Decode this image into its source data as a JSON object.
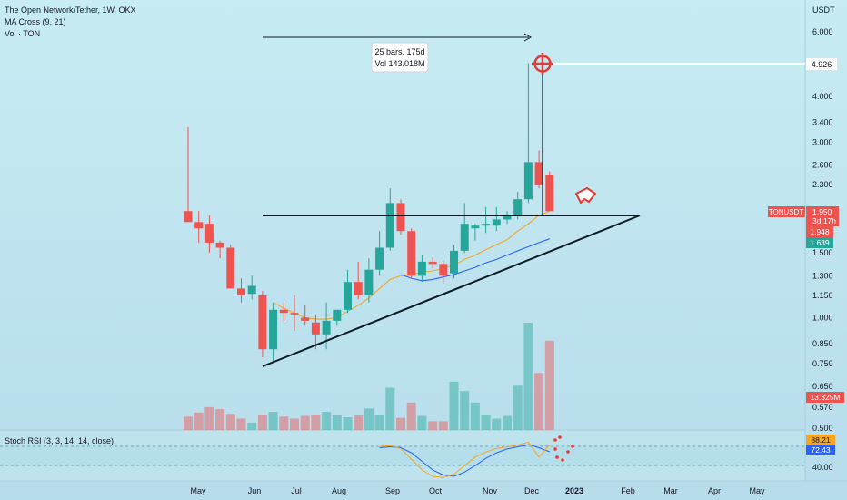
{
  "header": {
    "symbol_line": "The Open Network/Tether, 1W, OKX",
    "indicator_ma": "MA Cross (9, 21)",
    "indicator_vol": "Vol · TON"
  },
  "price_axis": {
    "unit": "USDT",
    "ticks": [
      "6.000",
      "4.000",
      "3.400",
      "3.000",
      "2.600",
      "2.300",
      "1.500",
      "1.300",
      "1.150",
      "1.000",
      "0.850",
      "0.750",
      "0.650",
      "0.570",
      "0.500"
    ]
  },
  "price_labels": {
    "target": "4.926",
    "symbol": "TONUSDT",
    "last": "1.950",
    "countdown": "3d 17h",
    "ma_fast": "1.948",
    "ma_slow": "1.639",
    "volume": "13.325M"
  },
  "measure": {
    "bars": "25 bars, 175d",
    "vol": "Vol 143.018M"
  },
  "rsi": {
    "label": "Stoch RSI (3, 3, 14, 14, close)",
    "k": "88.21",
    "d": "72.43",
    "tick": "40.00"
  },
  "time_axis": [
    "May",
    "Jun",
    "Jul",
    "Aug",
    "Sep",
    "Oct",
    "Nov",
    "Dec",
    "2023",
    "Feb",
    "Mar",
    "Apr",
    "May"
  ],
  "colors": {
    "up": "#26a69a",
    "down": "#ef5350",
    "ma_fast": "#f5a623",
    "ma_slow": "#2962ff",
    "bg": "#bfe3ee",
    "target": "#e53935"
  },
  "chart_data": {
    "type": "candlestick",
    "interval": "1W",
    "log_scale": true,
    "ylim": [
      0.49,
      7.2
    ],
    "candles": [
      {
        "o": 1.95,
        "h": 3.3,
        "l": 1.82,
        "c": 1.82
      },
      {
        "o": 1.82,
        "h": 1.95,
        "l": 1.6,
        "c": 1.75
      },
      {
        "o": 1.8,
        "h": 1.9,
        "l": 1.5,
        "c": 1.6
      },
      {
        "o": 1.6,
        "h": 1.62,
        "l": 1.45,
        "c": 1.55
      },
      {
        "o": 1.55,
        "h": 1.58,
        "l": 1.25,
        "c": 1.2
      },
      {
        "o": 1.2,
        "h": 1.28,
        "l": 1.1,
        "c": 1.15
      },
      {
        "o": 1.16,
        "h": 1.3,
        "l": 1.12,
        "c": 1.22
      },
      {
        "o": 1.15,
        "h": 1.18,
        "l": 0.78,
        "c": 0.82
      },
      {
        "o": 0.82,
        "h": 1.1,
        "l": 0.76,
        "c": 1.05
      },
      {
        "o": 1.05,
        "h": 1.1,
        "l": 0.98,
        "c": 1.03
      },
      {
        "o": 1.03,
        "h": 1.15,
        "l": 0.92,
        "c": 1.02
      },
      {
        "o": 1.0,
        "h": 1.08,
        "l": 0.95,
        "c": 0.98
      },
      {
        "o": 0.97,
        "h": 1.02,
        "l": 0.82,
        "c": 0.9
      },
      {
        "o": 0.9,
        "h": 1.1,
        "l": 0.82,
        "c": 0.98
      },
      {
        "o": 0.98,
        "h": 1.05,
        "l": 0.95,
        "c": 1.05
      },
      {
        "o": 1.05,
        "h": 1.35,
        "l": 1.03,
        "c": 1.25
      },
      {
        "o": 1.25,
        "h": 1.42,
        "l": 1.12,
        "c": 1.15
      },
      {
        "o": 1.15,
        "h": 1.45,
        "l": 1.1,
        "c": 1.35
      },
      {
        "o": 1.35,
        "h": 1.72,
        "l": 1.3,
        "c": 1.55
      },
      {
        "o": 1.55,
        "h": 2.25,
        "l": 1.52,
        "c": 2.05
      },
      {
        "o": 2.05,
        "h": 2.1,
        "l": 1.68,
        "c": 1.72
      },
      {
        "o": 1.72,
        "h": 1.75,
        "l": 1.28,
        "c": 1.3
      },
      {
        "o": 1.3,
        "h": 1.48,
        "l": 1.25,
        "c": 1.42
      },
      {
        "o": 1.42,
        "h": 1.46,
        "l": 1.36,
        "c": 1.4
      },
      {
        "o": 1.4,
        "h": 1.43,
        "l": 1.24,
        "c": 1.3
      },
      {
        "o": 1.32,
        "h": 1.58,
        "l": 1.28,
        "c": 1.52
      },
      {
        "o": 1.52,
        "h": 2.05,
        "l": 1.5,
        "c": 1.8
      },
      {
        "o": 1.75,
        "h": 1.8,
        "l": 1.62,
        "c": 1.78
      },
      {
        "o": 1.78,
        "h": 2.0,
        "l": 1.7,
        "c": 1.8
      },
      {
        "o": 1.78,
        "h": 2.0,
        "l": 1.72,
        "c": 1.85
      },
      {
        "o": 1.85,
        "h": 1.95,
        "l": 1.8,
        "c": 1.9
      },
      {
        "o": 1.9,
        "h": 2.2,
        "l": 1.85,
        "c": 2.1
      },
      {
        "o": 2.1,
        "h": 4.926,
        "l": 2.05,
        "c": 2.65
      },
      {
        "o": 2.65,
        "h": 2.85,
        "l": 2.25,
        "c": 2.3
      },
      {
        "o": 2.45,
        "h": 2.5,
        "l": 1.95,
        "c": 1.95
      }
    ],
    "volume_m": [
      2.0,
      2.6,
      3.4,
      3.1,
      2.4,
      1.7,
      1.1,
      2.3,
      2.7,
      2.0,
      1.7,
      2.1,
      2.3,
      2.7,
      2.2,
      1.9,
      2.2,
      3.2,
      2.3,
      6.3,
      1.8,
      4.1,
      2.1,
      1.3,
      1.3,
      7.2,
      5.8,
      4.1,
      2.3,
      1.7,
      2.1,
      6.6,
      16.0,
      8.5,
      13.325
    ],
    "ma_fast": [
      null,
      null,
      null,
      null,
      null,
      null,
      null,
      null,
      1.1,
      1.06,
      1.03,
      1.0,
      0.99,
      0.99,
      1.0,
      1.04,
      1.08,
      1.13,
      1.2,
      1.27,
      1.3,
      1.31,
      1.33,
      1.34,
      1.36,
      1.39,
      1.44,
      1.48,
      1.53,
      1.58,
      1.63,
      1.72,
      1.8,
      1.9,
      1.948
    ],
    "ma_slow": [
      null,
      null,
      null,
      null,
      null,
      null,
      null,
      null,
      null,
      null,
      null,
      null,
      null,
      null,
      null,
      null,
      null,
      null,
      null,
      null,
      1.31,
      1.28,
      1.26,
      1.27,
      1.29,
      1.31,
      1.34,
      1.37,
      1.41,
      1.44,
      1.48,
      1.52,
      1.56,
      1.6,
      1.639
    ],
    "rsi_k": [
      null,
      null,
      null,
      null,
      null,
      null,
      null,
      null,
      null,
      null,
      null,
      null,
      null,
      null,
      null,
      null,
      null,
      null,
      85,
      87,
      80,
      55,
      30,
      15,
      12,
      20,
      40,
      60,
      72,
      80,
      84,
      88,
      95,
      60,
      88.21
    ],
    "rsi_d": [
      null,
      null,
      null,
      null,
      null,
      null,
      null,
      null,
      null,
      null,
      null,
      null,
      null,
      null,
      null,
      null,
      null,
      null,
      82,
      84,
      82,
      70,
      50,
      30,
      18,
      15,
      25,
      40,
      57,
      70,
      79,
      84,
      89,
      82,
      72.43
    ],
    "resistance_level": 1.95,
    "target_level": 4.926
  }
}
